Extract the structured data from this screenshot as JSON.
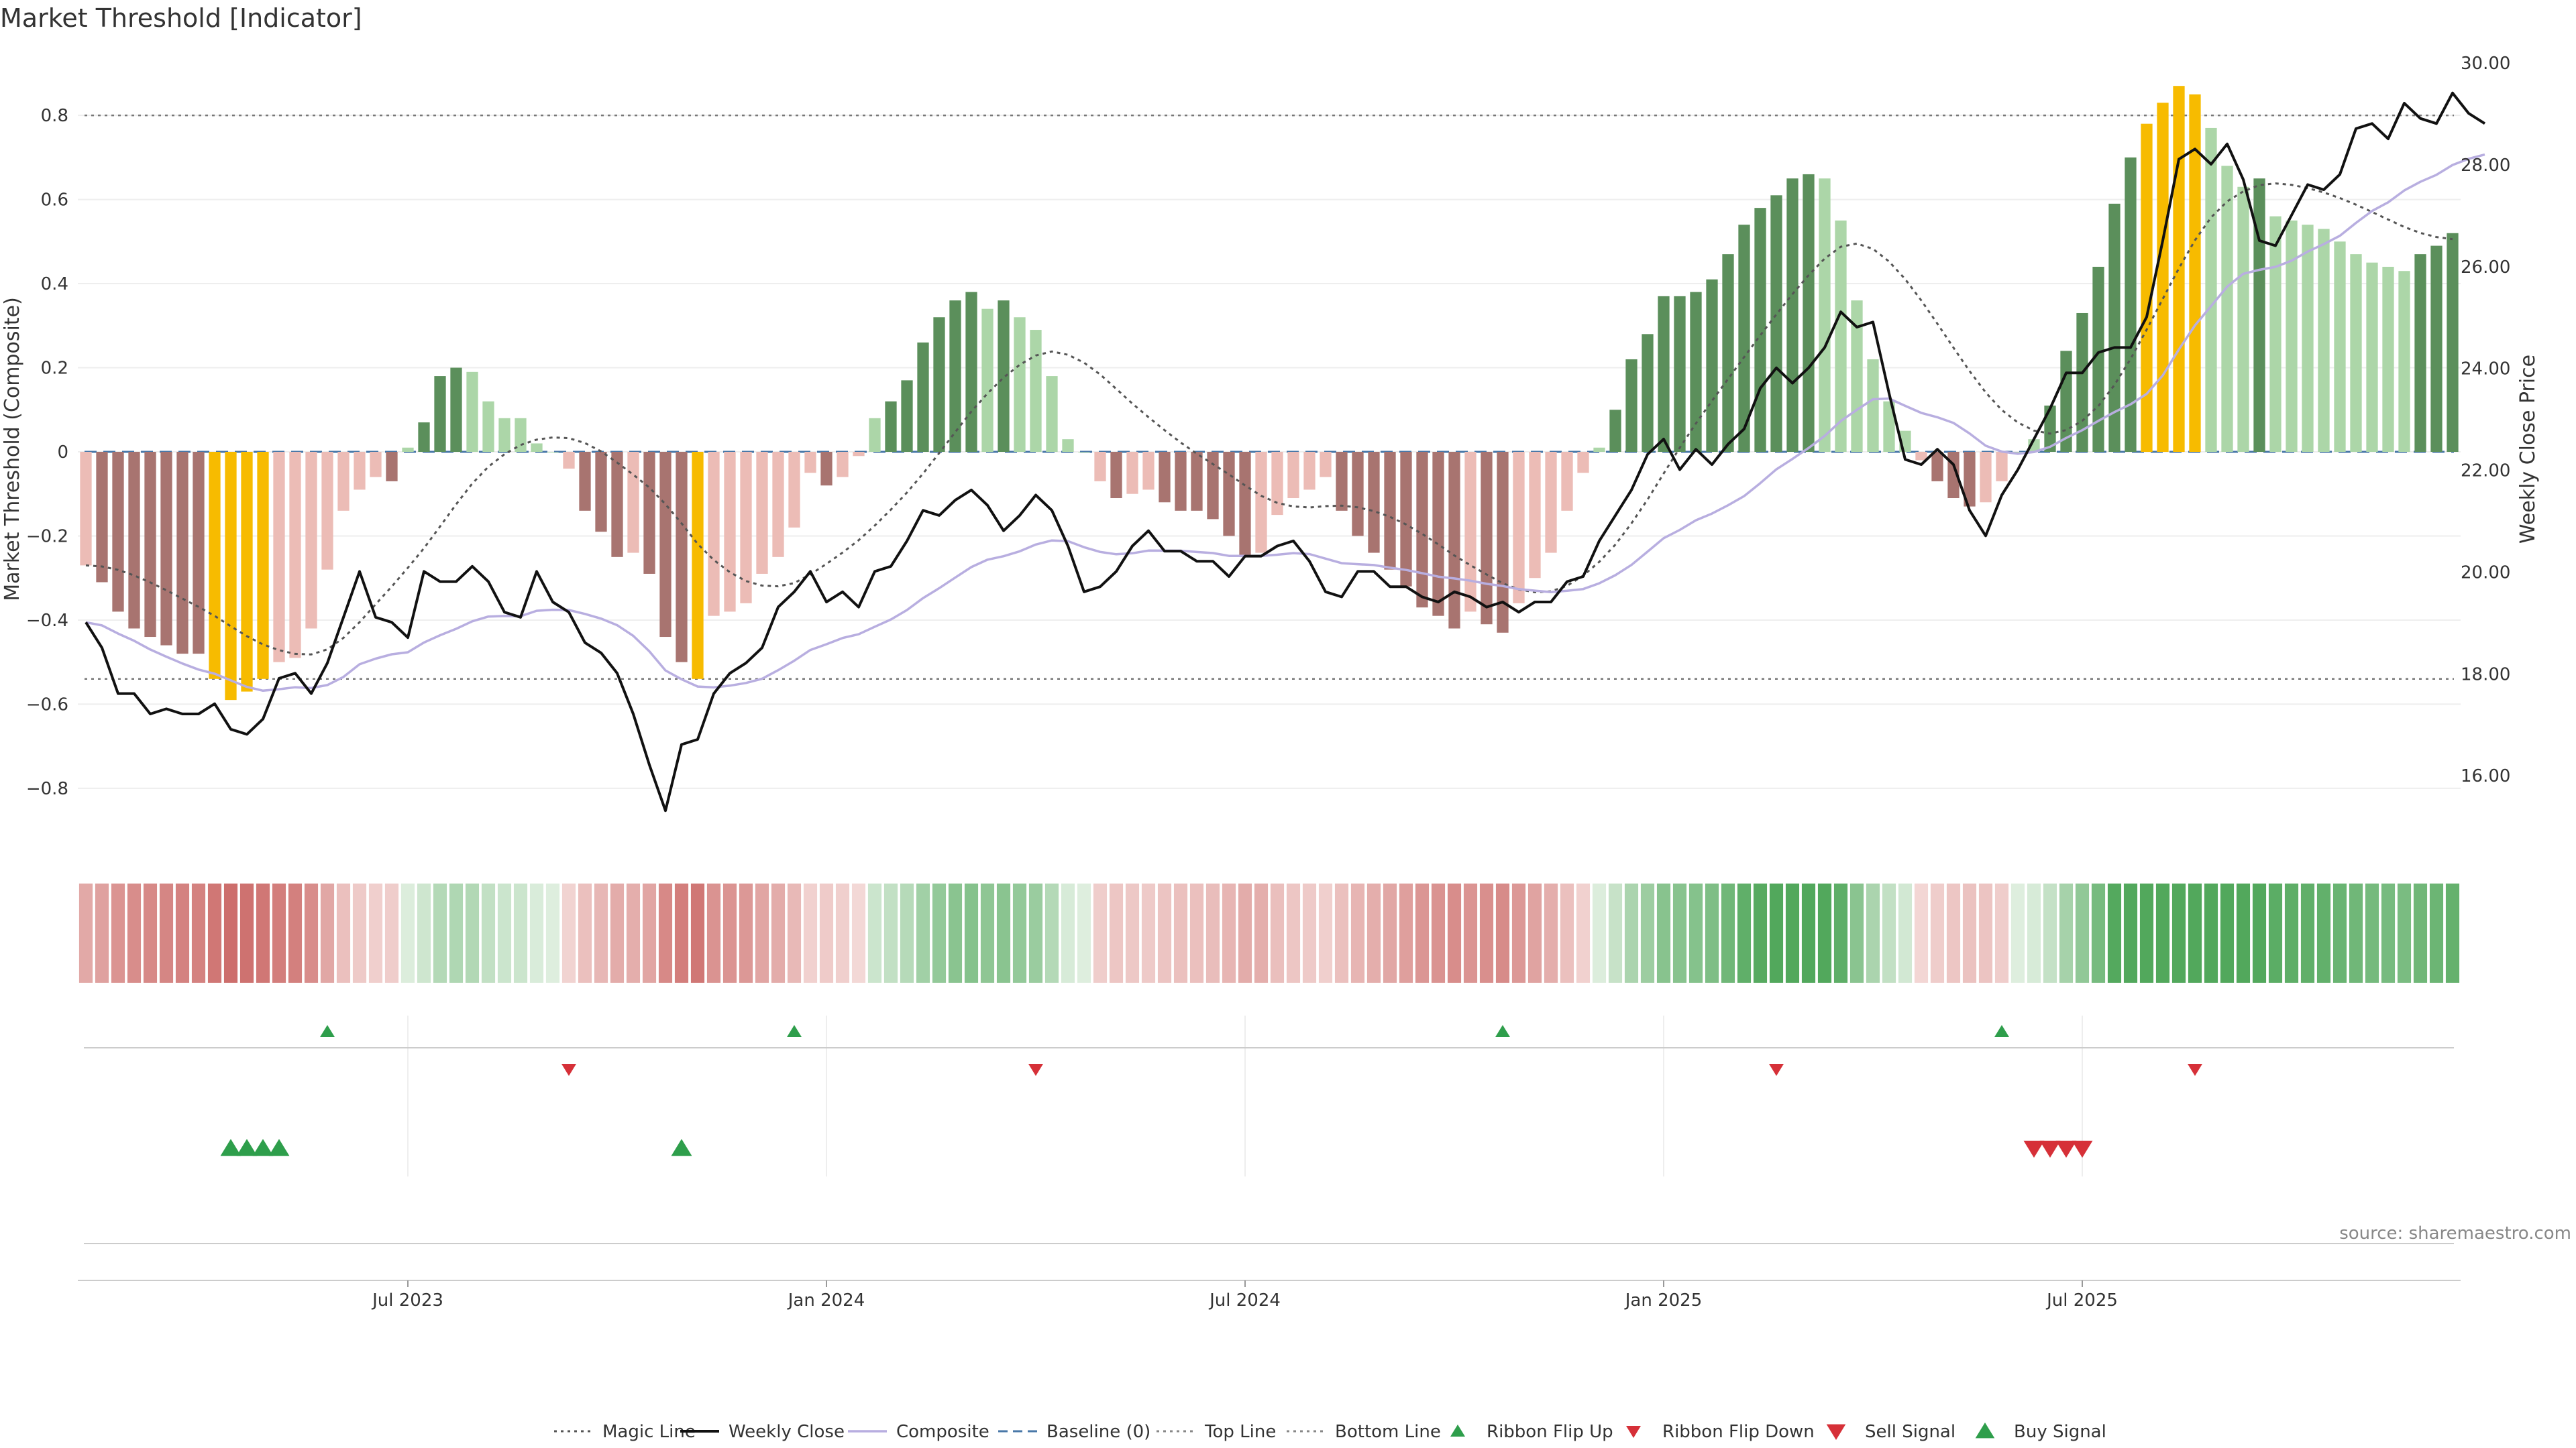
{
  "chart_data": {
    "type": "bar",
    "title": "Market Threshold [Indicator]",
    "ylabel": "Market Threshold (Composite)",
    "y2label": "Weekly Close Price",
    "ylim": [
      -0.95,
      0.95
    ],
    "y2lim": [
      14.5,
      30.2
    ],
    "yticks": [
      "0.8",
      "0.6",
      "0.4",
      "0.2",
      "0",
      "−0.2",
      "−0.4",
      "−0.6",
      "−0.8"
    ],
    "y2ticks": [
      "30.00",
      "28.00",
      "26.00",
      "24.00",
      "22.00",
      "20.00",
      "18.00",
      "16.00"
    ],
    "xticks": [
      "Jul 2023",
      "Jan 2024",
      "Jul 2024",
      "Jan 2025",
      "Jul 2025"
    ],
    "xtick_weeks": [
      20.5,
      46.5,
      72.5,
      98.5,
      124.5
    ],
    "top_line": 0.8,
    "bottom_line": -0.54,
    "baseline": 0,
    "grid": true,
    "source": "source: sharemaestro.com",
    "bar_colors": {
      "strong_positive": "#5b8f5b",
      "weak_positive": "#acd6a8",
      "strong_negative": "#a87470",
      "weak_negative": "#ecbcb6",
      "extreme": "#f7bb00"
    },
    "bars": [
      {
        "v": -0.27,
        "c": "weak_negative"
      },
      {
        "v": -0.31,
        "c": "strong_negative"
      },
      {
        "v": -0.38,
        "c": "strong_negative"
      },
      {
        "v": -0.42,
        "c": "strong_negative"
      },
      {
        "v": -0.44,
        "c": "strong_negative"
      },
      {
        "v": -0.46,
        "c": "strong_negative"
      },
      {
        "v": -0.48,
        "c": "strong_negative"
      },
      {
        "v": -0.48,
        "c": "strong_negative"
      },
      {
        "v": -0.54,
        "c": "extreme"
      },
      {
        "v": -0.59,
        "c": "extreme"
      },
      {
        "v": -0.57,
        "c": "extreme"
      },
      {
        "v": -0.54,
        "c": "extreme"
      },
      {
        "v": -0.5,
        "c": "weak_negative"
      },
      {
        "v": -0.49,
        "c": "weak_negative"
      },
      {
        "v": -0.42,
        "c": "weak_negative"
      },
      {
        "v": -0.28,
        "c": "weak_negative"
      },
      {
        "v": -0.14,
        "c": "weak_negative"
      },
      {
        "v": -0.09,
        "c": "weak_negative"
      },
      {
        "v": -0.06,
        "c": "weak_negative"
      },
      {
        "v": -0.07,
        "c": "strong_negative"
      },
      {
        "v": 0.01,
        "c": "weak_positive"
      },
      {
        "v": 0.07,
        "c": "strong_positive"
      },
      {
        "v": 0.18,
        "c": "strong_positive"
      },
      {
        "v": 0.2,
        "c": "strong_positive"
      },
      {
        "v": 0.19,
        "c": "weak_positive"
      },
      {
        "v": 0.12,
        "c": "weak_positive"
      },
      {
        "v": 0.08,
        "c": "weak_positive"
      },
      {
        "v": 0.08,
        "c": "weak_positive"
      },
      {
        "v": 0.02,
        "c": "weak_positive"
      },
      {
        "v": 0.0,
        "c": "weak_positive"
      },
      {
        "v": -0.04,
        "c": "weak_negative"
      },
      {
        "v": -0.14,
        "c": "strong_negative"
      },
      {
        "v": -0.19,
        "c": "strong_negative"
      },
      {
        "v": -0.25,
        "c": "strong_negative"
      },
      {
        "v": -0.24,
        "c": "weak_negative"
      },
      {
        "v": -0.29,
        "c": "strong_negative"
      },
      {
        "v": -0.44,
        "c": "strong_negative"
      },
      {
        "v": -0.5,
        "c": "strong_negative"
      },
      {
        "v": -0.54,
        "c": "extreme"
      },
      {
        "v": -0.39,
        "c": "weak_negative"
      },
      {
        "v": -0.38,
        "c": "weak_negative"
      },
      {
        "v": -0.36,
        "c": "weak_negative"
      },
      {
        "v": -0.29,
        "c": "weak_negative"
      },
      {
        "v": -0.25,
        "c": "weak_negative"
      },
      {
        "v": -0.18,
        "c": "weak_negative"
      },
      {
        "v": -0.05,
        "c": "weak_negative"
      },
      {
        "v": -0.08,
        "c": "strong_negative"
      },
      {
        "v": -0.06,
        "c": "weak_negative"
      },
      {
        "v": -0.01,
        "c": "weak_negative"
      },
      {
        "v": 0.08,
        "c": "weak_positive"
      },
      {
        "v": 0.12,
        "c": "strong_positive"
      },
      {
        "v": 0.17,
        "c": "strong_positive"
      },
      {
        "v": 0.26,
        "c": "strong_positive"
      },
      {
        "v": 0.32,
        "c": "strong_positive"
      },
      {
        "v": 0.36,
        "c": "strong_positive"
      },
      {
        "v": 0.38,
        "c": "strong_positive"
      },
      {
        "v": 0.34,
        "c": "weak_positive"
      },
      {
        "v": 0.36,
        "c": "strong_positive"
      },
      {
        "v": 0.32,
        "c": "weak_positive"
      },
      {
        "v": 0.29,
        "c": "weak_positive"
      },
      {
        "v": 0.18,
        "c": "weak_positive"
      },
      {
        "v": 0.03,
        "c": "weak_positive"
      },
      {
        "v": 0.0,
        "c": "weak_positive"
      },
      {
        "v": -0.07,
        "c": "weak_negative"
      },
      {
        "v": -0.11,
        "c": "strong_negative"
      },
      {
        "v": -0.1,
        "c": "weak_negative"
      },
      {
        "v": -0.09,
        "c": "weak_negative"
      },
      {
        "v": -0.12,
        "c": "strong_negative"
      },
      {
        "v": -0.14,
        "c": "strong_negative"
      },
      {
        "v": -0.14,
        "c": "strong_negative"
      },
      {
        "v": -0.16,
        "c": "strong_negative"
      },
      {
        "v": -0.2,
        "c": "strong_negative"
      },
      {
        "v": -0.25,
        "c": "strong_negative"
      },
      {
        "v": -0.24,
        "c": "weak_negative"
      },
      {
        "v": -0.15,
        "c": "weak_negative"
      },
      {
        "v": -0.11,
        "c": "weak_negative"
      },
      {
        "v": -0.09,
        "c": "weak_negative"
      },
      {
        "v": -0.06,
        "c": "weak_negative"
      },
      {
        "v": -0.14,
        "c": "strong_negative"
      },
      {
        "v": -0.2,
        "c": "strong_negative"
      },
      {
        "v": -0.24,
        "c": "strong_negative"
      },
      {
        "v": -0.28,
        "c": "strong_negative"
      },
      {
        "v": -0.32,
        "c": "strong_negative"
      },
      {
        "v": -0.37,
        "c": "strong_negative"
      },
      {
        "v": -0.39,
        "c": "strong_negative"
      },
      {
        "v": -0.42,
        "c": "strong_negative"
      },
      {
        "v": -0.38,
        "c": "weak_negative"
      },
      {
        "v": -0.41,
        "c": "strong_negative"
      },
      {
        "v": -0.43,
        "c": "strong_negative"
      },
      {
        "v": -0.36,
        "c": "weak_negative"
      },
      {
        "v": -0.3,
        "c": "weak_negative"
      },
      {
        "v": -0.24,
        "c": "weak_negative"
      },
      {
        "v": -0.14,
        "c": "weak_negative"
      },
      {
        "v": -0.05,
        "c": "weak_negative"
      },
      {
        "v": 0.01,
        "c": "weak_positive"
      },
      {
        "v": 0.1,
        "c": "strong_positive"
      },
      {
        "v": 0.22,
        "c": "strong_positive"
      },
      {
        "v": 0.28,
        "c": "strong_positive"
      },
      {
        "v": 0.37,
        "c": "strong_positive"
      },
      {
        "v": 0.37,
        "c": "strong_positive"
      },
      {
        "v": 0.38,
        "c": "strong_positive"
      },
      {
        "v": 0.41,
        "c": "strong_positive"
      },
      {
        "v": 0.47,
        "c": "strong_positive"
      },
      {
        "v": 0.54,
        "c": "strong_positive"
      },
      {
        "v": 0.58,
        "c": "strong_positive"
      },
      {
        "v": 0.61,
        "c": "strong_positive"
      },
      {
        "v": 0.65,
        "c": "strong_positive"
      },
      {
        "v": 0.66,
        "c": "strong_positive"
      },
      {
        "v": 0.65,
        "c": "weak_positive"
      },
      {
        "v": 0.55,
        "c": "weak_positive"
      },
      {
        "v": 0.36,
        "c": "weak_positive"
      },
      {
        "v": 0.22,
        "c": "weak_positive"
      },
      {
        "v": 0.12,
        "c": "weak_positive"
      },
      {
        "v": 0.05,
        "c": "weak_positive"
      },
      {
        "v": -0.02,
        "c": "weak_negative"
      },
      {
        "v": -0.07,
        "c": "strong_negative"
      },
      {
        "v": -0.11,
        "c": "strong_negative"
      },
      {
        "v": -0.13,
        "c": "strong_negative"
      },
      {
        "v": -0.12,
        "c": "weak_negative"
      },
      {
        "v": -0.07,
        "c": "weak_negative"
      },
      {
        "v": 0.0,
        "c": "weak_positive"
      },
      {
        "v": 0.03,
        "c": "weak_positive"
      },
      {
        "v": 0.11,
        "c": "strong_positive"
      },
      {
        "v": 0.24,
        "c": "strong_positive"
      },
      {
        "v": 0.33,
        "c": "strong_positive"
      },
      {
        "v": 0.44,
        "c": "strong_positive"
      },
      {
        "v": 0.59,
        "c": "strong_positive"
      },
      {
        "v": 0.7,
        "c": "strong_positive"
      },
      {
        "v": 0.78,
        "c": "extreme"
      },
      {
        "v": 0.83,
        "c": "extreme"
      },
      {
        "v": 0.87,
        "c": "extreme"
      },
      {
        "v": 0.85,
        "c": "extreme"
      },
      {
        "v": 0.77,
        "c": "weak_positive"
      },
      {
        "v": 0.68,
        "c": "weak_positive"
      },
      {
        "v": 0.63,
        "c": "weak_positive"
      },
      {
        "v": 0.65,
        "c": "strong_positive"
      },
      {
        "v": 0.56,
        "c": "weak_positive"
      },
      {
        "v": 0.55,
        "c": "weak_positive"
      },
      {
        "v": 0.54,
        "c": "weak_positive"
      },
      {
        "v": 0.53,
        "c": "weak_positive"
      },
      {
        "v": 0.5,
        "c": "weak_positive"
      },
      {
        "v": 0.47,
        "c": "weak_positive"
      },
      {
        "v": 0.45,
        "c": "weak_positive"
      },
      {
        "v": 0.44,
        "c": "weak_positive"
      },
      {
        "v": 0.43,
        "c": "weak_positive"
      },
      {
        "v": 0.47,
        "c": "strong_positive"
      },
      {
        "v": 0.49,
        "c": "strong_positive"
      },
      {
        "v": 0.52,
        "c": "strong_positive"
      }
    ],
    "weekly_close": [
      19.0,
      18.5,
      17.6,
      17.6,
      17.2,
      17.3,
      17.2,
      17.2,
      17.4,
      16.9,
      16.8,
      17.1,
      17.9,
      18.0,
      17.6,
      18.2,
      19.1,
      20.0,
      19.1,
      19.0,
      18.7,
      20.0,
      19.8,
      19.8,
      20.1,
      19.8,
      19.2,
      19.1,
      20.0,
      19.4,
      19.2,
      18.6,
      18.4,
      18.0,
      17.2,
      16.2,
      15.3,
      16.6,
      16.7,
      17.6,
      18.0,
      18.2,
      18.5,
      19.3,
      19.6,
      20.0,
      19.4,
      19.6,
      19.3,
      20.0,
      20.1,
      20.6,
      21.2,
      21.1,
      21.4,
      21.6,
      21.3,
      20.8,
      21.1,
      21.5,
      21.2,
      20.5,
      19.6,
      19.7,
      20.0,
      20.5,
      20.8,
      20.4,
      20.4,
      20.2,
      20.2,
      19.9,
      20.3,
      20.3,
      20.5,
      20.6,
      20.2,
      19.6,
      19.5,
      20.0,
      20.0,
      19.7,
      19.7,
      19.5,
      19.4,
      19.6,
      19.5,
      19.3,
      19.4,
      19.2,
      19.4,
      19.4,
      19.8,
      19.9,
      20.6,
      21.1,
      21.6,
      22.3,
      22.6,
      22.0,
      22.4,
      22.1,
      22.5,
      22.8,
      23.6,
      24.0,
      23.7,
      24.0,
      24.4,
      25.1,
      24.8,
      24.9,
      23.5,
      22.2,
      22.1,
      22.4,
      22.1,
      21.2,
      20.7,
      21.5,
      22.0,
      22.6,
      23.2,
      23.9,
      23.9,
      24.3,
      24.4,
      24.4,
      25.0,
      26.5,
      28.1,
      28.3,
      28.0,
      28.4,
      27.7,
      26.5,
      26.4,
      27.0,
      27.6,
      27.5,
      27.8,
      28.7,
      28.8,
      28.5,
      29.2,
      28.9,
      28.8,
      29.4,
      29.0,
      28.8
    ]
  },
  "signal_strip": {
    "ribbon_flip_up": [
      15,
      44,
      88,
      119
    ],
    "ribbon_flip_down": [
      30,
      59,
      105,
      131
    ],
    "buy_signals": [
      9,
      10,
      11,
      12,
      37
    ],
    "sell_signals": [
      121,
      122,
      123,
      124
    ]
  },
  "legend": [
    {
      "label": "Magic Line",
      "icon": "dotted-line-dark"
    },
    {
      "label": "Weekly Close",
      "icon": "solid-line-black"
    },
    {
      "label": "Composite",
      "icon": "solid-line-lavender"
    },
    {
      "label": "Baseline (0)",
      "icon": "dashed-line-blue"
    },
    {
      "label": "Top Line",
      "icon": "dotted-line-gray"
    },
    {
      "label": "Bottom Line",
      "icon": "dotted-line-gray"
    },
    {
      "label": "Ribbon Flip Up",
      "icon": "triangle-up-green"
    },
    {
      "label": "Ribbon Flip Down",
      "icon": "triangle-down-red"
    },
    {
      "label": "Sell Signal",
      "icon": "triangle-down-red-large"
    },
    {
      "label": "Buy Signal",
      "icon": "triangle-up-green-large"
    }
  ],
  "colors": {
    "weekly_close": "#111111",
    "composite": "#b8aee0",
    "magic_line": "#555555",
    "baseline": "#4a78a8",
    "up_marker": "#2e9e4b",
    "down_marker": "#d63038"
  }
}
